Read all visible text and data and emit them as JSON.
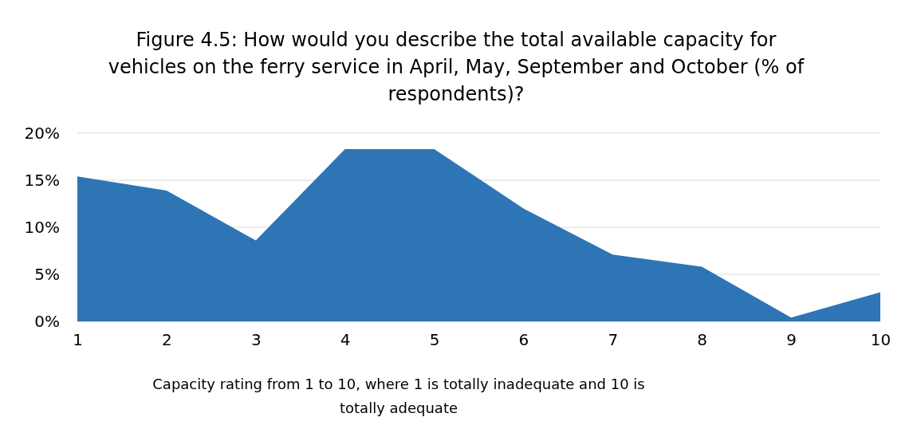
{
  "chart_data": {
    "type": "area",
    "title": "Figure 4.5: How would you describe the total available capacity for vehicles on the ferry service in April, May, September and October (% of respondents)?",
    "xlabel": "Capacity rating from 1 to 10, where 1 is totally inadequate and 10 is totally adequate",
    "categories": [
      "1",
      "2",
      "3",
      "4",
      "5",
      "6",
      "7",
      "8",
      "9",
      "10"
    ],
    "series": [
      {
        "color": "#2e75b6",
        "values": [
          15.4,
          13.9,
          8.6,
          18.3,
          18.3,
          12.0,
          7.1,
          5.8,
          0.4,
          3.1
        ]
      }
    ],
    "ylim": [
      0,
      20
    ],
    "yticks": [
      {
        "value": 0,
        "label": "0%"
      },
      {
        "value": 5,
        "label": "5%"
      },
      {
        "value": 10,
        "label": "10%"
      },
      {
        "value": 15,
        "label": "15%"
      },
      {
        "value": 20,
        "label": "20%"
      }
    ],
    "grid": "y"
  }
}
